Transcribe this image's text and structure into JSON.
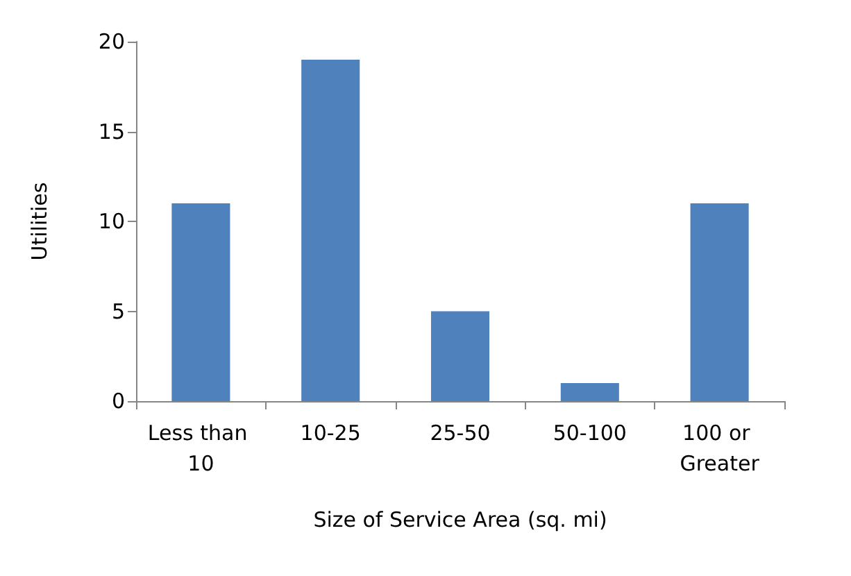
{
  "chart_data": {
    "type": "bar",
    "xlabel": "Size of Service Area (sq. mi)",
    "ylabel": "Utilities",
    "categories": [
      "Less than 10",
      "10-25",
      "25-50",
      "50-100",
      "100 or Greater"
    ],
    "values": [
      11,
      19,
      5,
      1,
      11
    ],
    "color": "#4f81bd",
    "ylim": [
      0,
      20
    ],
    "yticks": [
      0,
      5,
      10,
      15,
      20
    ],
    "grid": false
  }
}
